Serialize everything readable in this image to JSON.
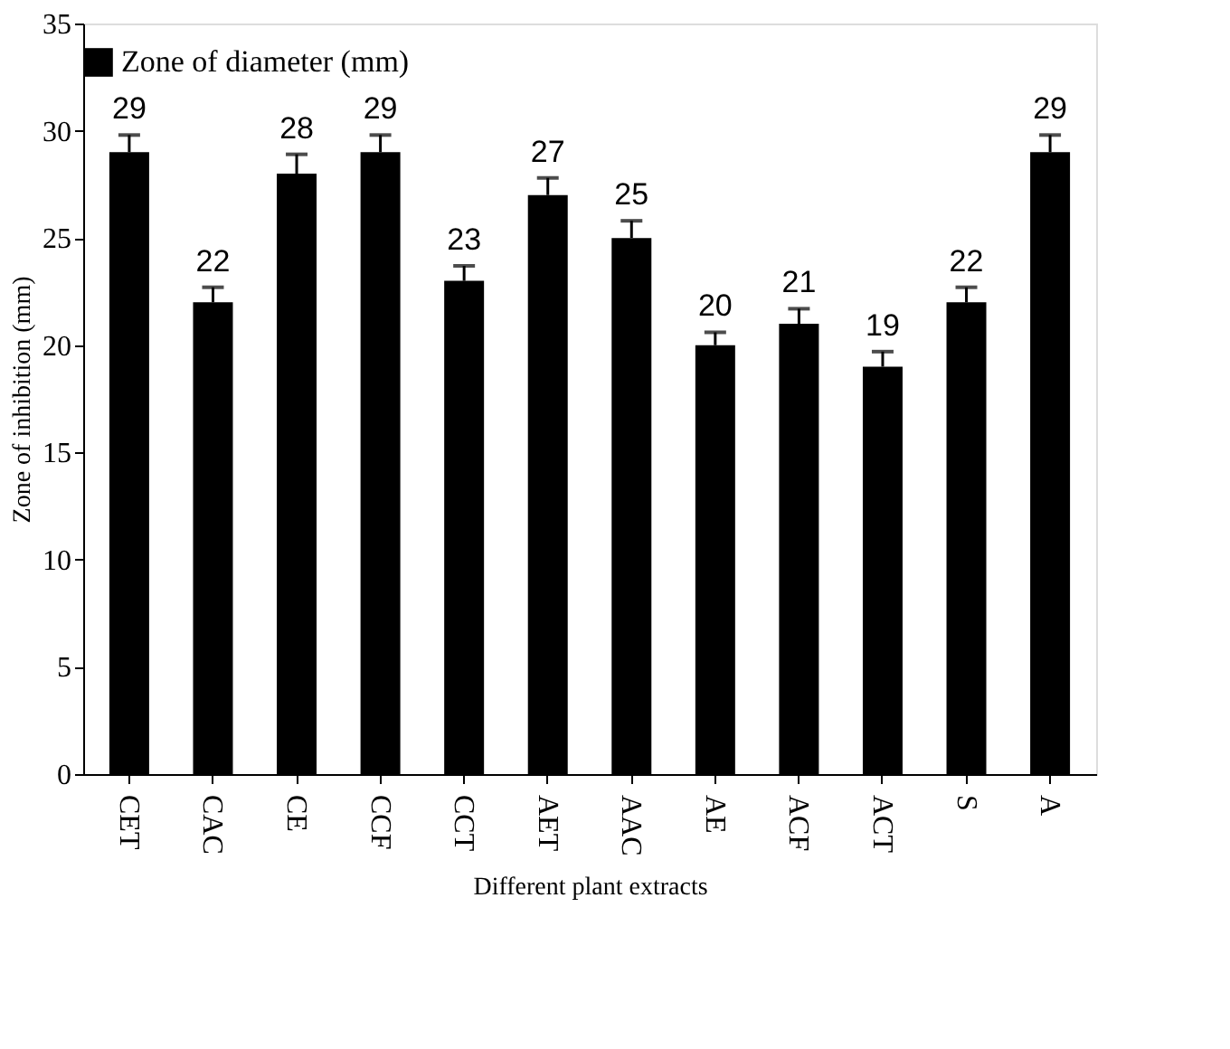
{
  "chart_data": {
    "type": "bar",
    "xlabel": "Different plant extracts",
    "ylabel": "Zone of inhibition (mm)",
    "categories": [
      "CET",
      "CAC",
      "CE",
      "CCF",
      "CCT",
      "AET",
      "AAC",
      "AE",
      "ACF",
      "ACT",
      "S",
      "A"
    ],
    "series": [
      {
        "name": "Zone of diameter  (mm)",
        "color": "#000000",
        "values": [
          29,
          22,
          28,
          29,
          23,
          27,
          25,
          20,
          21,
          19,
          22,
          29
        ],
        "errors": [
          [
            29,
            29.8
          ],
          [
            22,
            22.7
          ],
          [
            28,
            28.9
          ],
          [
            29,
            29.8
          ],
          [
            23,
            23.7
          ],
          [
            27,
            27.8
          ],
          [
            25,
            25.8
          ],
          [
            20,
            20.6
          ],
          [
            21,
            21.7
          ],
          [
            19,
            19.7
          ],
          [
            22,
            22.7
          ],
          [
            29,
            29.8
          ]
        ]
      }
    ],
    "ylim": [
      0,
      35
    ],
    "yticks": [
      0,
      5,
      10,
      15,
      20,
      25,
      30,
      35
    ],
    "data_labels": true,
    "legend": "top",
    "grid": false
  }
}
